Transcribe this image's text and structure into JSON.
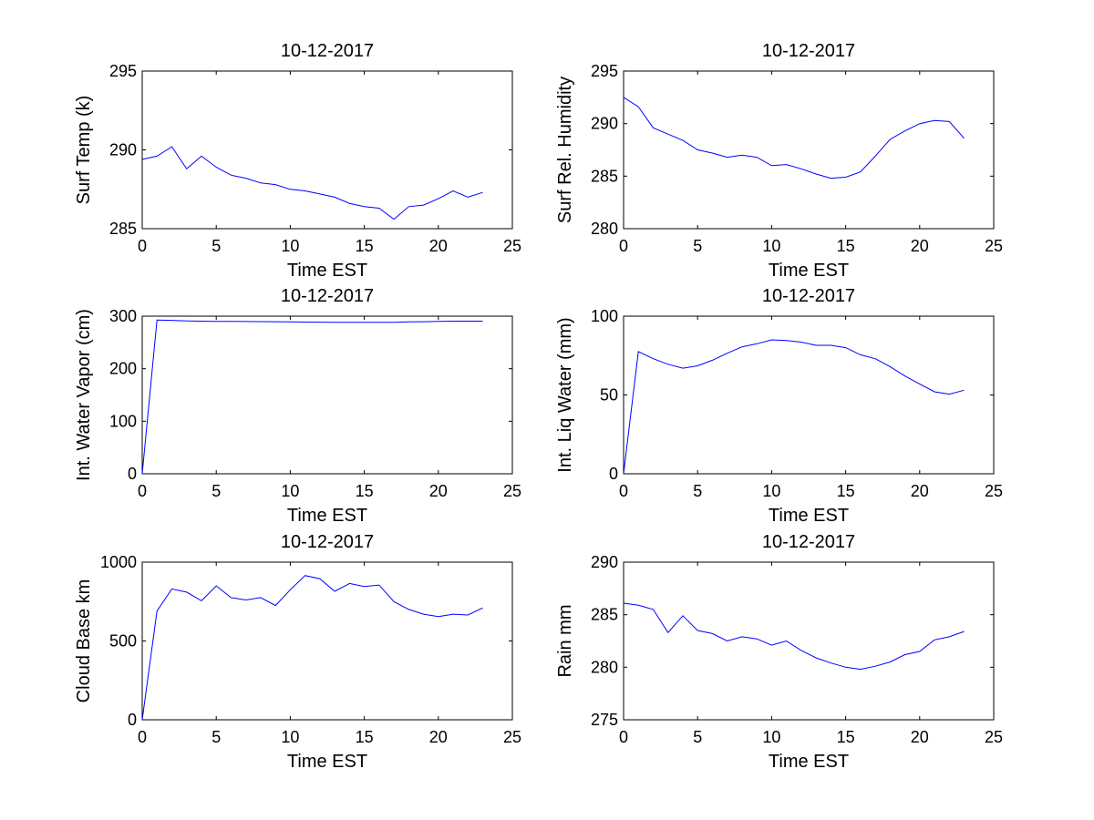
{
  "figure": {
    "background": "#ffffff",
    "line_color": "#0000ff",
    "axis_color": "#000000"
  },
  "chart_data": [
    {
      "type": "line",
      "title": "10-12-2017",
      "xlabel": "Time EST",
      "ylabel": "Surf Temp (k)",
      "xlim": [
        0,
        25
      ],
      "ylim": [
        285,
        295
      ],
      "xticks": [
        0,
        5,
        10,
        15,
        20,
        25
      ],
      "yticks": [
        285,
        290,
        295
      ],
      "grid": false,
      "series": [
        {
          "x": [
            0,
            1,
            2,
            3,
            4,
            5,
            6,
            7,
            8,
            9,
            10,
            11,
            12,
            13,
            14,
            15,
            16,
            17,
            18,
            19,
            20,
            21,
            22,
            23
          ],
          "y": [
            289.4,
            289.6,
            290.2,
            288.8,
            289.6,
            288.9,
            288.4,
            288.2,
            287.9,
            287.8,
            287.5,
            287.4,
            287.2,
            287.0,
            286.6,
            286.4,
            286.3,
            285.6,
            286.4,
            286.5,
            286.9,
            287.4,
            287.0,
            287.3
          ]
        }
      ]
    },
    {
      "type": "line",
      "title": "10-12-2017",
      "xlabel": "Time EST",
      "ylabel": "Surf Rel. Humidity",
      "xlim": [
        0,
        25
      ],
      "ylim": [
        280,
        295
      ],
      "xticks": [
        0,
        5,
        10,
        15,
        20,
        25
      ],
      "yticks": [
        280,
        285,
        290,
        295
      ],
      "grid": false,
      "series": [
        {
          "x": [
            0,
            1,
            2,
            3,
            4,
            5,
            6,
            7,
            8,
            9,
            10,
            11,
            12,
            13,
            14,
            15,
            16,
            17,
            18,
            19,
            20,
            21,
            22,
            23
          ],
          "y": [
            292.5,
            291.6,
            289.6,
            289.0,
            288.4,
            287.5,
            287.2,
            286.8,
            287.0,
            286.8,
            286.0,
            286.1,
            285.7,
            285.2,
            284.8,
            284.9,
            285.4,
            286.9,
            288.5,
            289.3,
            290.0,
            290.3,
            290.2,
            288.6
          ]
        }
      ]
    },
    {
      "type": "line",
      "title": "10-12-2017",
      "xlabel": "Time EST",
      "ylabel": "Int. Water Vapor (cm)",
      "xlim": [
        0,
        25
      ],
      "ylim": [
        0,
        300
      ],
      "xticks": [
        0,
        5,
        10,
        15,
        20,
        25
      ],
      "yticks": [
        0,
        100,
        200,
        300
      ],
      "grid": false,
      "series": [
        {
          "x": [
            0,
            1,
            2,
            3,
            4,
            5,
            6,
            7,
            8,
            9,
            10,
            11,
            12,
            13,
            14,
            15,
            16,
            17,
            18,
            19,
            20,
            21,
            22,
            23
          ],
          "y": [
            0,
            292.5,
            292,
            291,
            290.5,
            290,
            290,
            289.8,
            289.6,
            289.5,
            289.2,
            288.7,
            288.5,
            288.4,
            288.3,
            288.2,
            288.2,
            288.2,
            289,
            289.5,
            290,
            290.5,
            290.5,
            290.5
          ]
        }
      ]
    },
    {
      "type": "line",
      "title": "10-12-2017",
      "xlabel": "Time EST",
      "ylabel": "Int. Liq Water (mm)",
      "xlim": [
        0,
        25
      ],
      "ylim": [
        0,
        100
      ],
      "xticks": [
        0,
        5,
        10,
        15,
        20,
        25
      ],
      "yticks": [
        0,
        50,
        100
      ],
      "grid": false,
      "series": [
        {
          "x": [
            0,
            1,
            2,
            3,
            4,
            5,
            6,
            7,
            8,
            9,
            10,
            11,
            12,
            13,
            14,
            15,
            16,
            17,
            18,
            19,
            20,
            21,
            22,
            23
          ],
          "y": [
            0,
            77.5,
            73,
            69.5,
            67,
            68.5,
            72,
            76.5,
            80.5,
            82.5,
            85,
            84.5,
            83.5,
            81.5,
            81.5,
            80,
            75.5,
            73,
            68,
            62,
            57,
            52,
            50.5,
            53
          ]
        }
      ]
    },
    {
      "type": "line",
      "title": "10-12-2017",
      "xlabel": "Time EST",
      "ylabel": "Cloud Base km",
      "xlim": [
        0,
        25
      ],
      "ylim": [
        0,
        1000
      ],
      "xticks": [
        0,
        5,
        10,
        15,
        20,
        25
      ],
      "yticks": [
        0,
        500,
        1000
      ],
      "grid": false,
      "series": [
        {
          "x": [
            0,
            1,
            2,
            3,
            4,
            5,
            6,
            7,
            8,
            9,
            10,
            11,
            12,
            13,
            14,
            15,
            16,
            17,
            18,
            19,
            20,
            21,
            22,
            23
          ],
          "y": [
            0,
            690,
            830,
            810,
            755,
            850,
            775,
            760,
            775,
            725,
            825,
            915,
            895,
            815,
            865,
            845,
            855,
            750,
            700,
            670,
            655,
            670,
            665,
            710
          ]
        }
      ]
    },
    {
      "type": "line",
      "title": "10-12-2017",
      "xlabel": "Time EST",
      "ylabel": "Rain mm",
      "xlim": [
        0,
        25
      ],
      "ylim": [
        275,
        290
      ],
      "xticks": [
        0,
        5,
        10,
        15,
        20,
        25
      ],
      "yticks": [
        275,
        280,
        285,
        290
      ],
      "grid": false,
      "series": [
        {
          "x": [
            0,
            1,
            2,
            3,
            4,
            5,
            6,
            7,
            8,
            9,
            10,
            11,
            12,
            13,
            14,
            15,
            16,
            17,
            18,
            19,
            20,
            21,
            22,
            23
          ],
          "y": [
            286.1,
            285.9,
            285.5,
            283.3,
            284.9,
            283.5,
            283.2,
            282.5,
            282.9,
            282.7,
            282.1,
            282.5,
            281.6,
            280.9,
            280.4,
            280.0,
            279.8,
            280.1,
            280.5,
            281.2,
            281.5,
            282.6,
            282.9,
            283.4
          ]
        }
      ]
    }
  ]
}
